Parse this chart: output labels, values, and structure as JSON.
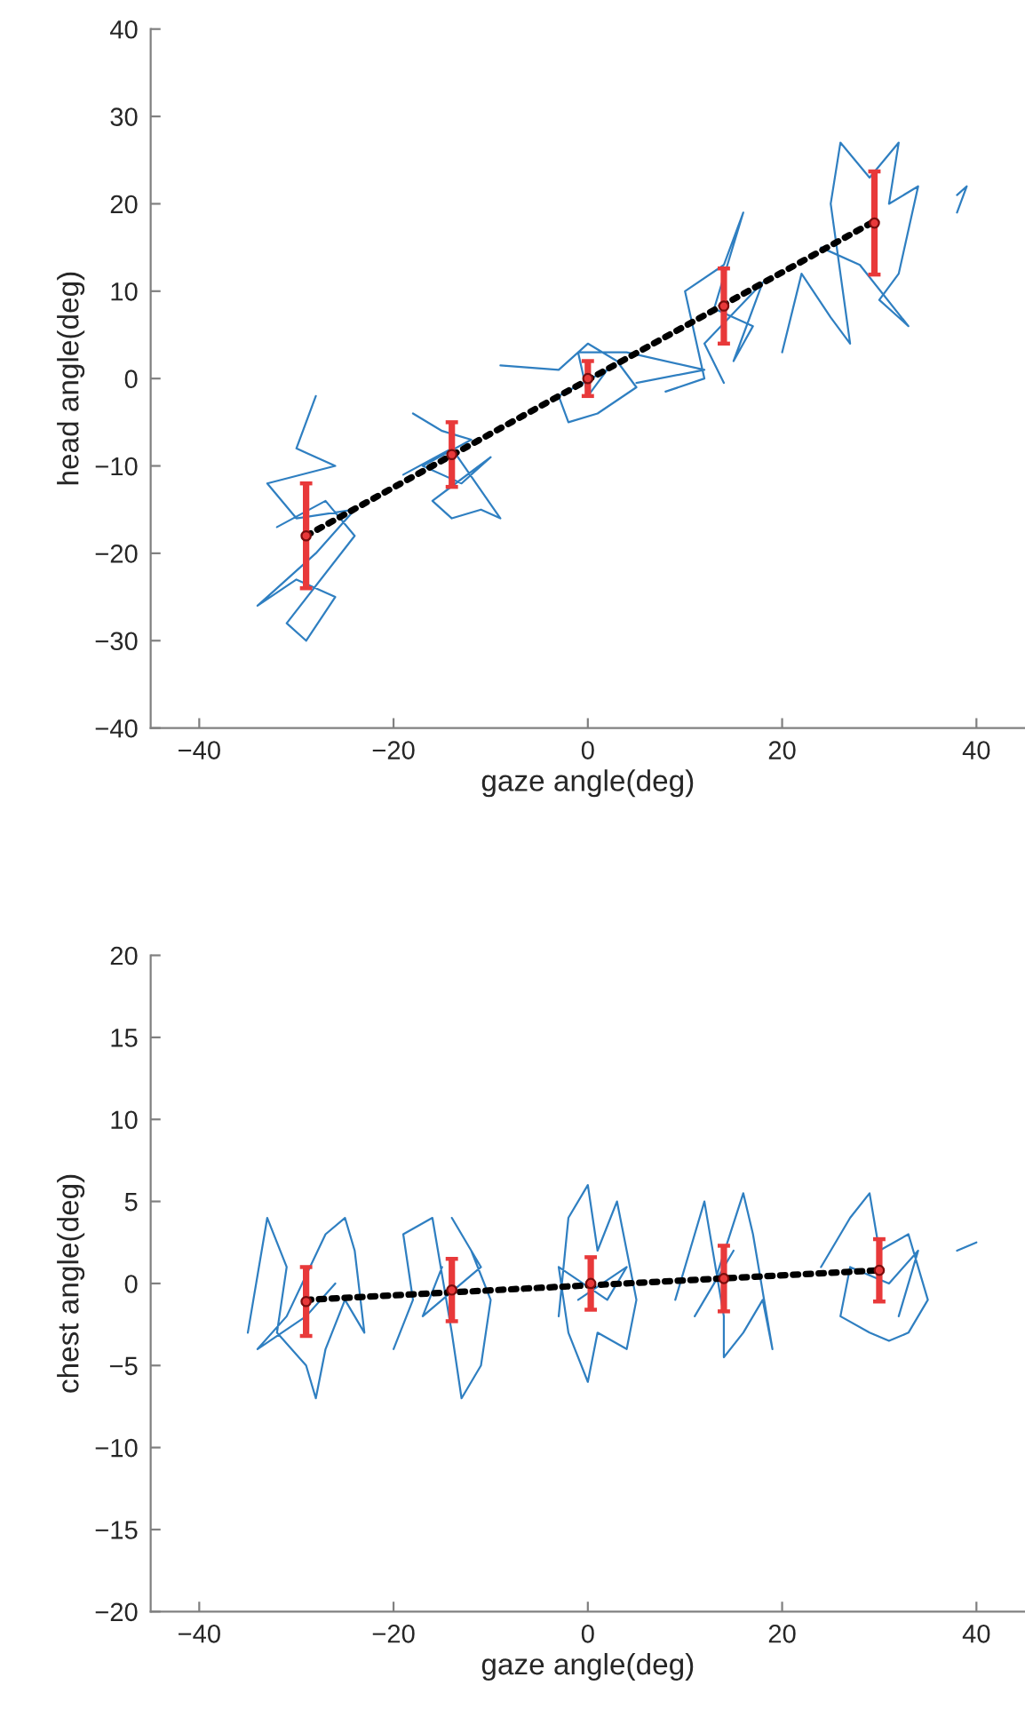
{
  "chart_data": [
    {
      "type": "line",
      "xlabel": "gaze angle(deg)",
      "ylabel": "head angle(deg)",
      "xlim": [
        -45,
        45
      ],
      "ylim": [
        -40,
        40
      ],
      "xticks": [
        -40,
        -20,
        0,
        20,
        40
      ],
      "yticks": [
        -40,
        -30,
        -20,
        -10,
        0,
        10,
        20,
        30,
        40
      ],
      "grid": false,
      "series": [
        {
          "color": "#2f7fc1",
          "x": [
            -28,
            -30,
            -26,
            -33,
            -30,
            -24,
            -28,
            -34,
            -30,
            -26,
            -29,
            -31,
            -24,
            -27,
            -32,
            null,
            -18,
            -15,
            -12,
            -17,
            -13,
            -10,
            -16,
            -14,
            -11,
            -9,
            -14,
            -19,
            null,
            -9,
            -3,
            0,
            3,
            5,
            1,
            -2,
            -3,
            2,
            0,
            -1,
            4,
            12,
            5,
            null,
            8,
            12,
            11,
            10,
            14,
            16,
            13,
            17,
            15,
            18,
            12,
            14,
            null,
            20,
            22,
            25,
            27,
            25,
            26,
            29,
            32,
            31,
            34,
            32,
            30,
            33,
            28,
            24,
            null,
            38,
            39,
            38
          ],
          "values": [
            -2,
            -8,
            -10,
            -12,
            -16,
            -15,
            -20,
            -26,
            -23,
            -25,
            -30,
            -28,
            -18,
            -14,
            -17,
            null,
            -4,
            -6,
            -7,
            -10,
            -12,
            -9,
            -14,
            -16,
            -15,
            -16,
            -8,
            -11,
            null,
            1.5,
            1,
            4,
            2,
            -1,
            -4,
            -5,
            -2,
            1,
            -2,
            3,
            3,
            1,
            -0.5,
            null,
            -1.5,
            0,
            5,
            10,
            13,
            19,
            8,
            6,
            2,
            11,
            4,
            -0.5,
            null,
            3,
            12,
            7,
            4,
            20,
            27,
            23,
            27,
            20,
            22,
            12,
            9,
            6,
            13,
            15,
            null,
            21,
            22,
            19
          ]
        },
        {
          "type": "line",
          "color": "#000000",
          "line_style": "dotted",
          "x": [
            -29,
            29.5
          ],
          "values": [
            -18,
            18
          ]
        },
        {
          "type": "scatter",
          "marker": "circle",
          "color": "#e8393a",
          "x": [
            -29,
            -14,
            0,
            14,
            29.5
          ],
          "values": [
            -18,
            -8.7,
            0,
            8.3,
            17.8
          ],
          "errors": [
            6,
            3.7,
            2,
            4.3,
            5.9
          ]
        }
      ]
    },
    {
      "type": "line",
      "xlabel": "gaze angle(deg)",
      "ylabel": "chest angle(deg)",
      "xlim": [
        -45,
        45
      ],
      "ylim": [
        -20,
        20
      ],
      "xticks": [
        -40,
        -20,
        0,
        20,
        40
      ],
      "yticks": [
        -20,
        -15,
        -10,
        -5,
        0,
        5,
        10,
        15,
        20
      ],
      "grid": false,
      "series": [
        {
          "color": "#2f7fc1",
          "x": [
            -35,
            -33,
            -31,
            -32,
            -29,
            -28,
            -27,
            -25,
            -23,
            -24,
            -25,
            -27,
            -31,
            -34,
            -29,
            -26,
            null,
            -20,
            -18,
            -19,
            -16,
            -14,
            -13,
            -11,
            -10,
            -12,
            -14,
            -11,
            -17,
            -15,
            null,
            -3,
            -2,
            0,
            1,
            3,
            5,
            4,
            1,
            0,
            -2,
            -3,
            2,
            4,
            -1,
            null,
            9,
            11,
            12,
            14,
            14,
            16,
            18,
            19,
            17,
            16,
            13,
            11,
            15,
            null,
            24,
            25,
            27,
            29,
            30,
            33,
            35,
            33,
            31,
            29,
            26,
            27,
            31,
            34,
            32,
            null,
            38,
            40
          ],
          "values": [
            -3,
            4,
            1,
            -3,
            -5,
            -7,
            -4,
            -1,
            -3,
            2,
            4,
            3,
            -2,
            -4,
            -2,
            0,
            null,
            -4,
            -1,
            3,
            4,
            -3,
            -7,
            -5,
            -1,
            2,
            4,
            1,
            -2,
            1,
            null,
            -2,
            4,
            6,
            2,
            5,
            -1,
            -4,
            -3,
            -6,
            -3,
            1,
            -1,
            1,
            -1,
            null,
            -1,
            3,
            5,
            -2,
            -4.5,
            -3,
            -1,
            -4,
            3,
            5.5,
            0,
            -2,
            2,
            null,
            1,
            2,
            4,
            5.5,
            2,
            3,
            -1,
            -3,
            -3.5,
            -3,
            -2,
            1,
            0,
            2,
            -2,
            null,
            2,
            2.5
          ]
        },
        {
          "type": "line",
          "color": "#000000",
          "line_style": "dotted",
          "x": [
            -29,
            30
          ],
          "values": [
            -1,
            0.8
          ]
        },
        {
          "type": "scatter",
          "marker": "circle",
          "color": "#e8393a",
          "x": [
            -29,
            -14,
            0.3,
            14,
            30
          ],
          "values": [
            -1.1,
            -0.4,
            0,
            0.3,
            0.8
          ],
          "errors": [
            2.1,
            1.9,
            1.6,
            2,
            1.9
          ]
        }
      ]
    }
  ]
}
